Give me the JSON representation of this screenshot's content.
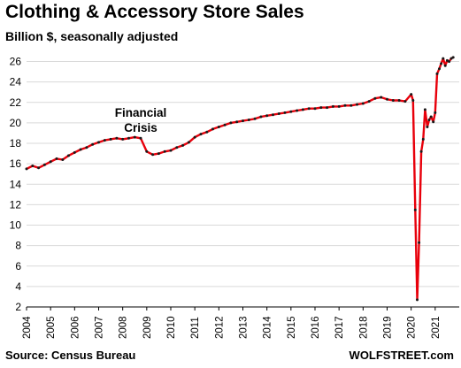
{
  "header": {
    "title": "Clothing & Accessory Store Sales",
    "subtitle": "Billion $, seasonally adjusted"
  },
  "footer": {
    "source": "Source: Census Bureau",
    "brand": "WOLFSTREET.com"
  },
  "colors": {
    "line": "#e8000b",
    "markers": "#1a1a1a",
    "grid": "#d9d9d9",
    "axis": "#000000"
  },
  "chart_data": {
    "type": "line",
    "title": "Clothing & Accessory Store Sales",
    "subtitle": "Billion $, seasonally adjusted",
    "xlabel": "",
    "ylabel": "",
    "ylim": [
      2,
      26
    ],
    "xlim": [
      2004.0,
      2022.0
    ],
    "yticks": [
      2,
      4,
      6,
      8,
      10,
      12,
      14,
      16,
      18,
      20,
      22,
      24,
      26
    ],
    "xticks": [
      "2004",
      "2005",
      "2006",
      "2007",
      "2008",
      "2009",
      "2010",
      "2011",
      "2012",
      "2013",
      "2014",
      "2015",
      "2016",
      "2017",
      "2018",
      "2019",
      "2020",
      "2021"
    ],
    "grid": "horizontal",
    "legend": "none",
    "annotations": [
      {
        "text_lines": [
          "Financial",
          "Crisis"
        ],
        "x": 2008.75,
        "y": 20.6
      }
    ],
    "series": [
      {
        "x": [
          2004.0,
          2004.25,
          2004.5,
          2004.75,
          2005.0,
          2005.25,
          2005.5,
          2005.75,
          2006.0,
          2006.25,
          2006.5,
          2006.75,
          2007.0,
          2007.25,
          2007.5,
          2007.75,
          2008.0,
          2008.25,
          2008.5,
          2008.75,
          2009.0,
          2009.25,
          2009.5,
          2009.75,
          2010.0,
          2010.25,
          2010.5,
          2010.75,
          2011.0,
          2011.25,
          2011.5,
          2011.75,
          2012.0,
          2012.25,
          2012.5,
          2012.75,
          2013.0,
          2013.25,
          2013.5,
          2013.75,
          2014.0,
          2014.25,
          2014.5,
          2014.75,
          2015.0,
          2015.25,
          2015.5,
          2015.75,
          2016.0,
          2016.25,
          2016.5,
          2016.75,
          2017.0,
          2017.25,
          2017.5,
          2017.75,
          2018.0,
          2018.25,
          2018.5,
          2018.75,
          2019.0,
          2019.25,
          2019.5,
          2019.75,
          2020.0,
          2020.08,
          2020.17,
          2020.25,
          2020.33,
          2020.42,
          2020.5,
          2020.58,
          2020.67,
          2020.75,
          2020.83,
          2020.92,
          2021.0,
          2021.08,
          2021.17,
          2021.25,
          2021.33,
          2021.42,
          2021.5,
          2021.58,
          2021.67,
          2021.75
        ],
        "y": [
          15.5,
          15.8,
          15.6,
          15.9,
          16.2,
          16.5,
          16.4,
          16.8,
          17.1,
          17.4,
          17.6,
          17.9,
          18.1,
          18.3,
          18.4,
          18.5,
          18.4,
          18.5,
          18.6,
          18.5,
          17.2,
          16.9,
          17.0,
          17.2,
          17.3,
          17.6,
          17.8,
          18.1,
          18.6,
          18.9,
          19.1,
          19.4,
          19.6,
          19.8,
          20.0,
          20.1,
          20.2,
          20.3,
          20.4,
          20.6,
          20.7,
          20.8,
          20.9,
          21.0,
          21.1,
          21.2,
          21.3,
          21.4,
          21.4,
          21.5,
          21.5,
          21.6,
          21.6,
          21.7,
          21.7,
          21.8,
          21.9,
          22.1,
          22.4,
          22.5,
          22.3,
          22.2,
          22.2,
          22.1,
          22.8,
          22.2,
          11.5,
          2.7,
          8.3,
          17.2,
          18.4,
          21.3,
          19.6,
          20.3,
          20.6,
          20.1,
          21.0,
          24.8,
          25.3,
          25.8,
          26.3,
          25.6,
          26.1,
          26.0,
          26.3,
          26.4
        ]
      }
    ]
  }
}
